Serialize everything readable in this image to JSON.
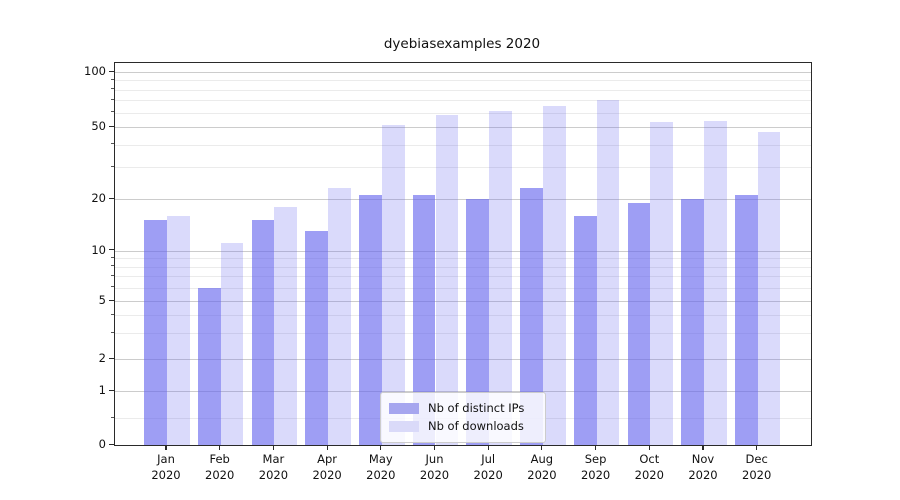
{
  "title": "dyebiasexamples 2020",
  "chart_data": {
    "type": "bar",
    "title": "dyebiasexamples 2020",
    "categories": [
      "Jan",
      "Feb",
      "Mar",
      "Apr",
      "May",
      "Jun",
      "Jul",
      "Aug",
      "Sep",
      "Oct",
      "Nov",
      "Dec"
    ],
    "category_year": "2020",
    "series": [
      {
        "name": "Nb of distinct IPs",
        "values": [
          15,
          6,
          15,
          13,
          21,
          21,
          20,
          23,
          16,
          19,
          20,
          21
        ],
        "fill": "rgba(99,99,237,0.62)",
        "legend_color": "#a6a6ef"
      },
      {
        "name": "Nb of downloads",
        "values": [
          16,
          11,
          18,
          23,
          51,
          58,
          61,
          65,
          70,
          53,
          54,
          47
        ],
        "fill": "rgba(99,99,237,0.235)",
        "legend_color": "#dadaf9"
      }
    ],
    "y_axis": {
      "tick_labels": [
        "100",
        "50",
        "20",
        "10",
        "5",
        "2",
        "1",
        "0"
      ],
      "ticks": [
        100,
        50,
        20,
        10,
        5,
        2,
        1,
        0
      ],
      "minor_gridlines": [
        0.5,
        3,
        4,
        6,
        7,
        8,
        9,
        30,
        40,
        60,
        70,
        80,
        90
      ],
      "ylim": [
        0,
        112
      ],
      "scale": "log-like with ticks 0,1,2,5,10,20,50,100",
      "grid": true
    },
    "legend": {
      "position": "lower center",
      "entries": [
        "Nb of distinct IPs",
        "Nb of downloads"
      ]
    }
  },
  "colors": {
    "bar_base": "#6363ed",
    "major_grid": "#cccccc",
    "minor_grid": "#ebebeb",
    "axis": "#2a2a2a",
    "text": "#111111",
    "legend_border": "#cccccc"
  }
}
